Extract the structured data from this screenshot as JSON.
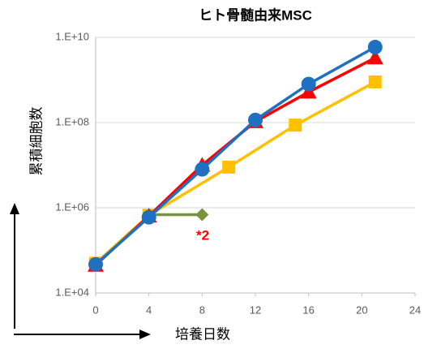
{
  "chart_data": {
    "type": "line",
    "title": "ヒト骨髄由来MSC",
    "xlabel": "培養日数",
    "ylabel": "累積細胞数",
    "log_y": true,
    "grid": true,
    "xlim": [
      0,
      24
    ],
    "xticks": [
      0,
      4,
      8,
      12,
      16,
      20,
      24
    ],
    "ylim": [
      10000,
      10000000000
    ],
    "yticks": [
      {
        "value": 10000,
        "label": "1.E+04"
      },
      {
        "value": 1000000,
        "label": "1.E+06"
      },
      {
        "value": 100000000,
        "label": "1.E+08"
      },
      {
        "value": 10000000000,
        "label": "1.E+10"
      }
    ],
    "series": [
      {
        "color": "#77933c",
        "marker": "diamond",
        "x": [
          4,
          8
        ],
        "values": [
          690000,
          690000
        ]
      },
      {
        "color": "#ffc000",
        "marker": "square",
        "x": [
          0,
          4,
          10,
          15,
          21
        ],
        "values": [
          50000,
          670000,
          9000000,
          87000000,
          900000000
        ]
      },
      {
        "color": "#ff0000",
        "marker": "triangle",
        "x": [
          0,
          4,
          8,
          12,
          16,
          21
        ],
        "values": [
          45000,
          640000,
          10000000,
          105000000,
          520000000,
          3300000000
        ]
      },
      {
        "color": "#1f70c1",
        "marker": "circle",
        "x": [
          0,
          4,
          8,
          12,
          16,
          21
        ],
        "values": [
          47000,
          600000,
          8000000,
          115000000,
          800000000,
          5900000000
        ]
      }
    ],
    "annotation": "*2"
  }
}
